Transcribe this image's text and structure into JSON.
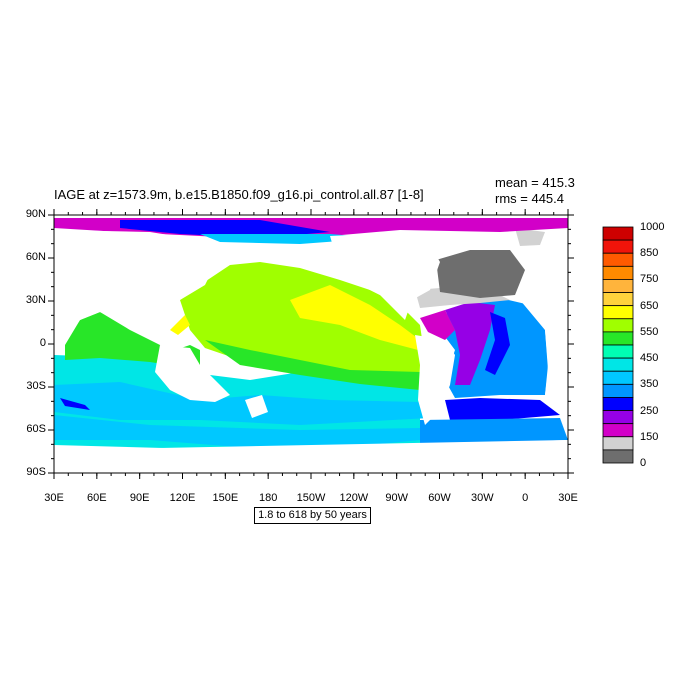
{
  "figure": {
    "title": "IAGE at z=1573.9m, b.e15.B1850.f09_g16.pi_control.all.87 [1-8]",
    "mean_label": "mean = 415.3",
    "rms_label": "rms = 445.4",
    "range_label": "1.8 to 618 by 50 years"
  },
  "axes": {
    "x_ticks": [
      "30E",
      "60E",
      "90E",
      "120E",
      "150E",
      "180",
      "150W",
      "120W",
      "90W",
      "60W",
      "30W",
      "0",
      "30E"
    ],
    "y_ticks": [
      "90N",
      "60N",
      "30N",
      "0",
      "30S",
      "60S",
      "90S"
    ]
  },
  "colorbar": {
    "labels": [
      "1000",
      "850",
      "750",
      "650",
      "550",
      "450",
      "350",
      "250",
      "150",
      "0"
    ],
    "colors": [
      "#ce0000",
      "#f0140a",
      "#ff5a00",
      "#ff8a00",
      "#ffb43c",
      "#ffd23c",
      "#ffff00",
      "#a0ff00",
      "#28e628",
      "#00ffb4",
      "#00e6e6",
      "#00c8ff",
      "#0096ff",
      "#0000ff",
      "#9600e6",
      "#d200c8",
      "#d2d2d2",
      "#6e6e6e"
    ]
  }
}
